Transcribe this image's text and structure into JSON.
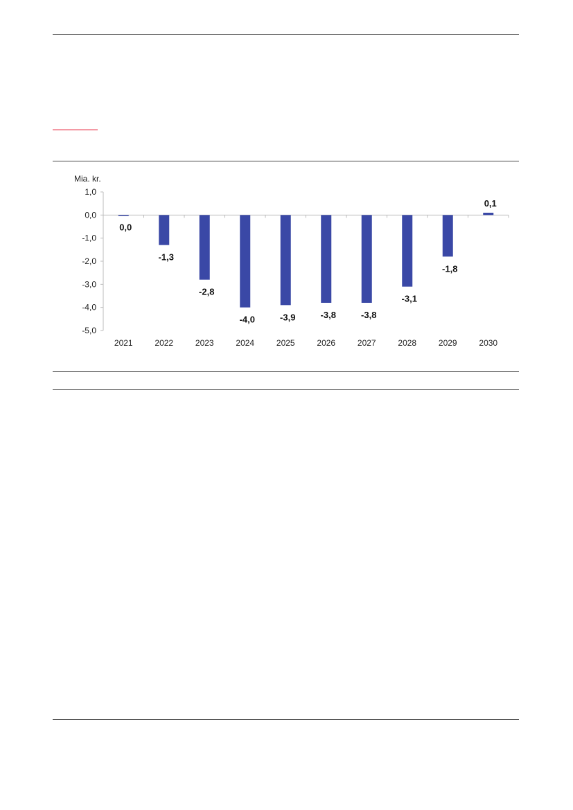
{
  "page": {
    "background": "#ffffff",
    "accent": "#e3001b",
    "rule_color": "#444444"
  },
  "chart_data": {
    "type": "bar",
    "unit_label": "Mia. kr.",
    "categories": [
      "2021",
      "2022",
      "2023",
      "2024",
      "2025",
      "2026",
      "2027",
      "2028",
      "2029",
      "2030"
    ],
    "values": [
      -0.03,
      -1.3,
      -2.8,
      -4.0,
      -3.9,
      -3.8,
      -3.8,
      -3.1,
      -1.8,
      0.1
    ],
    "data_labels": [
      "0,0",
      "-1,3",
      "-2,8",
      "-4,0",
      "-3,9",
      "-3,8",
      "-3,8",
      "-3,1",
      "-1,8",
      "0,1"
    ],
    "y_ticks": [
      1,
      0,
      -1,
      -2,
      -3,
      -4,
      -5
    ],
    "y_tick_labels": [
      "1,0",
      "0,0",
      "-1,0",
      "-2,0",
      "-3,0",
      "-4,0",
      "-5,0"
    ],
    "ylim": [
      -5,
      1
    ],
    "grid": false,
    "bar_color": "#3a48a6",
    "axis_color": "#bbbbbb"
  }
}
